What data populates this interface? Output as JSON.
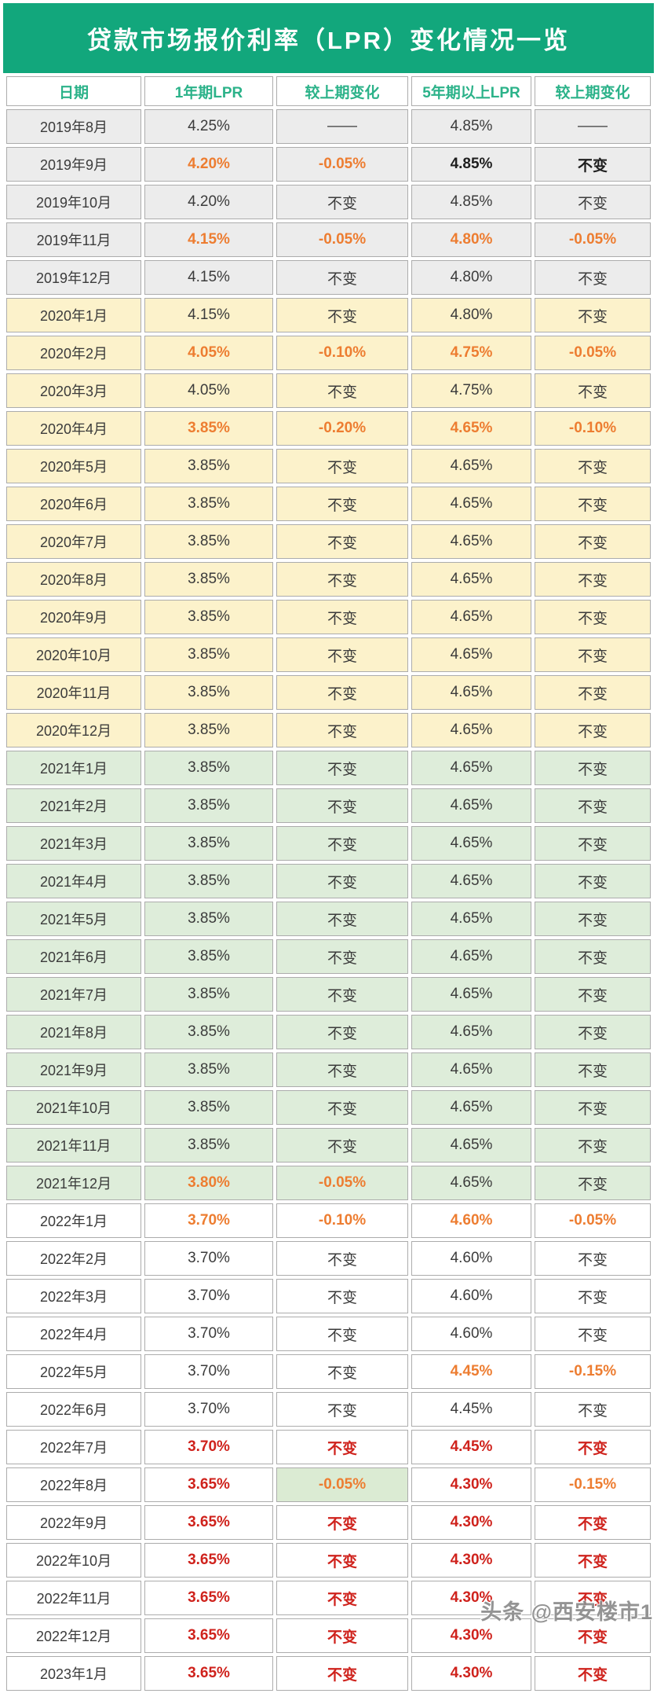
{
  "title": "贷款市场报价利率（LPR）变化情况一览",
  "watermark": "头条 @西安楼市1",
  "colors": {
    "header_bar": "#12A77C",
    "title_text": "#FFFFFF",
    "header_text": "#2BB289",
    "orange": "#ED7D31",
    "red": "#CF221C",
    "text": "#3B3B3B",
    "text_bold": "#1E1E1E",
    "row_gray": "#ECECEC",
    "row_yellow": "#FCF2CB",
    "row_green": "#DEEDDA",
    "row_white": "#FFFFFF",
    "cell_green": "#DBEBD3",
    "border": "#ACACAC",
    "watermark": "#8C8C8C"
  },
  "chart_data": {
    "type": "table",
    "title": "贷款市场报价利率（LPR）变化情况一览",
    "columns": [
      "日期",
      "1年期LPR",
      "较上期变化",
      "5年期以上LPR",
      "较上期变化"
    ],
    "rows": [
      [
        "2019年8月",
        "4.25%",
        "——",
        "4.85%",
        "——"
      ],
      [
        "2019年9月",
        "4.20%",
        "-0.05%",
        "4.85%",
        "不变"
      ],
      [
        "2019年10月",
        "4.20%",
        "不变",
        "4.85%",
        "不变"
      ],
      [
        "2019年11月",
        "4.15%",
        "-0.05%",
        "4.80%",
        "-0.05%"
      ],
      [
        "2019年12月",
        "4.15%",
        "不变",
        "4.80%",
        "不变"
      ],
      [
        "2020年1月",
        "4.15%",
        "不变",
        "4.80%",
        "不变"
      ],
      [
        "2020年2月",
        "4.05%",
        "-0.10%",
        "4.75%",
        "-0.05%"
      ],
      [
        "2020年3月",
        "4.05%",
        "不变",
        "4.75%",
        "不变"
      ],
      [
        "2020年4月",
        "3.85%",
        "-0.20%",
        "4.65%",
        "-0.10%"
      ],
      [
        "2020年5月",
        "3.85%",
        "不变",
        "4.65%",
        "不变"
      ],
      [
        "2020年6月",
        "3.85%",
        "不变",
        "4.65%",
        "不变"
      ],
      [
        "2020年7月",
        "3.85%",
        "不变",
        "4.65%",
        "不变"
      ],
      [
        "2020年8月",
        "3.85%",
        "不变",
        "4.65%",
        "不变"
      ],
      [
        "2020年9月",
        "3.85%",
        "不变",
        "4.65%",
        "不变"
      ],
      [
        "2020年10月",
        "3.85%",
        "不变",
        "4.65%",
        "不变"
      ],
      [
        "2020年11月",
        "3.85%",
        "不变",
        "4.65%",
        "不变"
      ],
      [
        "2020年12月",
        "3.85%",
        "不变",
        "4.65%",
        "不变"
      ],
      [
        "2021年1月",
        "3.85%",
        "不变",
        "4.65%",
        "不变"
      ],
      [
        "2021年2月",
        "3.85%",
        "不变",
        "4.65%",
        "不变"
      ],
      [
        "2021年3月",
        "3.85%",
        "不变",
        "4.65%",
        "不变"
      ],
      [
        "2021年4月",
        "3.85%",
        "不变",
        "4.65%",
        "不变"
      ],
      [
        "2021年5月",
        "3.85%",
        "不变",
        "4.65%",
        "不变"
      ],
      [
        "2021年6月",
        "3.85%",
        "不变",
        "4.65%",
        "不变"
      ],
      [
        "2021年7月",
        "3.85%",
        "不变",
        "4.65%",
        "不变"
      ],
      [
        "2021年8月",
        "3.85%",
        "不变",
        "4.65%",
        "不变"
      ],
      [
        "2021年9月",
        "3.85%",
        "不变",
        "4.65%",
        "不变"
      ],
      [
        "2021年10月",
        "3.85%",
        "不变",
        "4.65%",
        "不变"
      ],
      [
        "2021年11月",
        "3.85%",
        "不变",
        "4.65%",
        "不变"
      ],
      [
        "2021年12月",
        "3.80%",
        "-0.05%",
        "4.65%",
        "不变"
      ],
      [
        "2022年1月",
        "3.70%",
        "-0.10%",
        "4.60%",
        "-0.05%"
      ],
      [
        "2022年2月",
        "3.70%",
        "不变",
        "4.60%",
        "不变"
      ],
      [
        "2022年3月",
        "3.70%",
        "不变",
        "4.60%",
        "不变"
      ],
      [
        "2022年4月",
        "3.70%",
        "不变",
        "4.60%",
        "不变"
      ],
      [
        "2022年5月",
        "3.70%",
        "不变",
        "4.45%",
        "-0.15%"
      ],
      [
        "2022年6月",
        "3.70%",
        "不变",
        "4.45%",
        "不变"
      ],
      [
        "2022年7月",
        "3.70%",
        "不变",
        "4.45%",
        "不变"
      ],
      [
        "2022年8月",
        "3.65%",
        "-0.05%",
        "4.30%",
        "-0.15%"
      ],
      [
        "2022年9月",
        "3.65%",
        "不变",
        "4.30%",
        "不变"
      ],
      [
        "2022年10月",
        "3.65%",
        "不变",
        "4.30%",
        "不变"
      ],
      [
        "2022年11月",
        "3.65%",
        "不变",
        "4.30%",
        "不变"
      ],
      [
        "2022年12月",
        "3.65%",
        "不变",
        "4.30%",
        "不变"
      ],
      [
        "2023年1月",
        "3.65%",
        "不变",
        "4.30%",
        "不变"
      ]
    ]
  },
  "row_bg": [
    "gray",
    "gray",
    "gray",
    "gray",
    "gray",
    "yellow",
    "yellow",
    "yellow",
    "yellow",
    "yellow",
    "yellow",
    "yellow",
    "yellow",
    "yellow",
    "yellow",
    "yellow",
    "yellow",
    "green",
    "green",
    "green",
    "green",
    "green",
    "green",
    "green",
    "green",
    "green",
    "green",
    "green",
    "green",
    "white",
    "white",
    "white",
    "white",
    "white",
    "white",
    "white",
    "white",
    "white",
    "white",
    "white",
    "white",
    "white"
  ],
  "cell_styles": [
    [
      "n",
      "n",
      "n",
      "n"
    ],
    [
      "o",
      "o",
      "b",
      "b"
    ],
    [
      "n",
      "n",
      "n",
      "n"
    ],
    [
      "o",
      "o",
      "o",
      "o"
    ],
    [
      "n",
      "n",
      "n",
      "n"
    ],
    [
      "n",
      "n",
      "n",
      "n"
    ],
    [
      "o",
      "o",
      "o",
      "o"
    ],
    [
      "n",
      "n",
      "n",
      "n"
    ],
    [
      "o",
      "o",
      "o",
      "o"
    ],
    [
      "n",
      "n",
      "n",
      "n"
    ],
    [
      "n",
      "n",
      "n",
      "n"
    ],
    [
      "n",
      "n",
      "n",
      "n"
    ],
    [
      "n",
      "n",
      "n",
      "n"
    ],
    [
      "n",
      "n",
      "n",
      "n"
    ],
    [
      "n",
      "n",
      "n",
      "n"
    ],
    [
      "n",
      "n",
      "n",
      "n"
    ],
    [
      "n",
      "n",
      "n",
      "n"
    ],
    [
      "n",
      "n",
      "n",
      "n"
    ],
    [
      "n",
      "n",
      "n",
      "n"
    ],
    [
      "n",
      "n",
      "n",
      "n"
    ],
    [
      "n",
      "n",
      "n",
      "n"
    ],
    [
      "n",
      "n",
      "n",
      "n"
    ],
    [
      "n",
      "n",
      "n",
      "n"
    ],
    [
      "n",
      "n",
      "n",
      "n"
    ],
    [
      "n",
      "n",
      "n",
      "n"
    ],
    [
      "n",
      "n",
      "n",
      "n"
    ],
    [
      "n",
      "n",
      "n",
      "n"
    ],
    [
      "n",
      "n",
      "n",
      "n"
    ],
    [
      "o",
      "o",
      "n",
      "n"
    ],
    [
      "o",
      "o",
      "o",
      "o"
    ],
    [
      "n",
      "n",
      "n",
      "n"
    ],
    [
      "n",
      "n",
      "n",
      "n"
    ],
    [
      "n",
      "n",
      "n",
      "n"
    ],
    [
      "n",
      "n",
      "o",
      "o"
    ],
    [
      "n",
      "n",
      "n",
      "n"
    ],
    [
      "r",
      "r",
      "r",
      "r"
    ],
    [
      "r",
      "og",
      "r",
      "o"
    ],
    [
      "r",
      "r",
      "r",
      "r"
    ],
    [
      "r",
      "r",
      "r",
      "r"
    ],
    [
      "r",
      "r",
      "r",
      "r"
    ],
    [
      "r",
      "r",
      "r",
      "r"
    ],
    [
      "r",
      "r",
      "r",
      "r"
    ]
  ]
}
